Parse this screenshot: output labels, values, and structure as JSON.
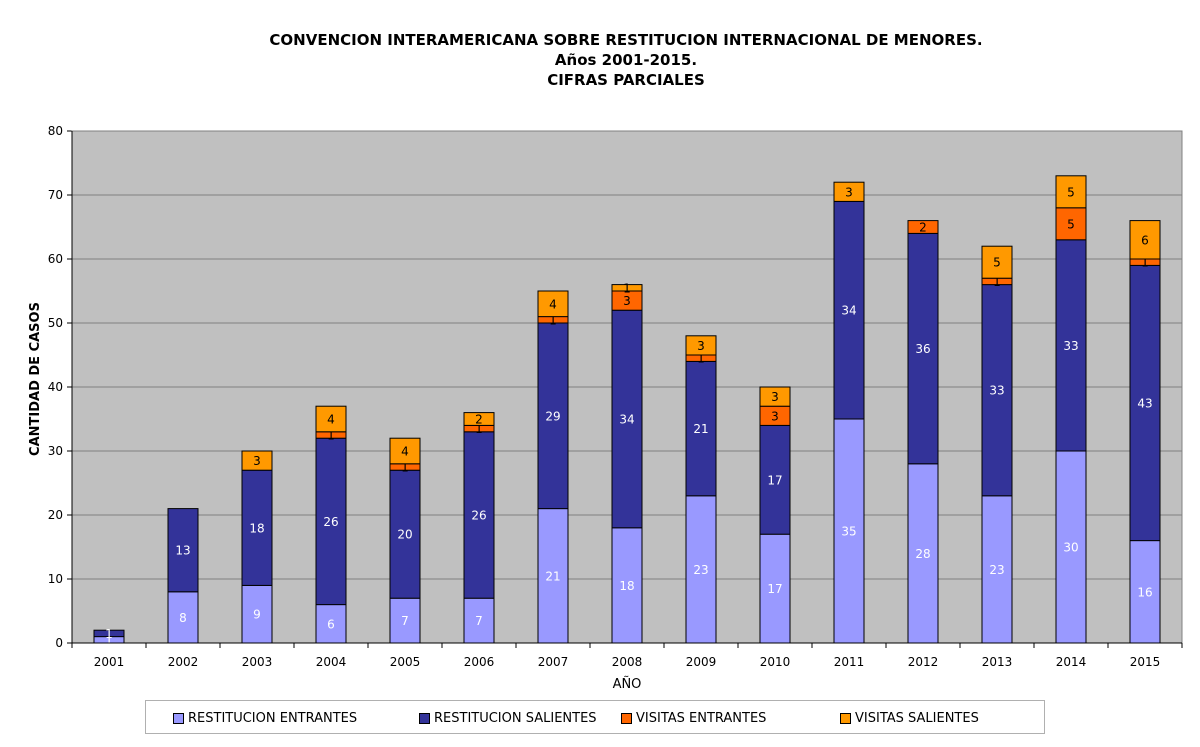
{
  "chart_data": {
    "type": "bar",
    "stacked": true,
    "title": "CONVENCION INTERAMERICANA SOBRE RESTITUCION INTERNACIONAL DE MENORES.",
    "subtitle_lines": [
      "Años 2001-2015.",
      "CIFRAS PARCIALES"
    ],
    "xlabel": "AÑO",
    "ylabel": "CANTIDAD DE CASOS",
    "ylim": [
      0,
      80
    ],
    "yticks": [
      0,
      10,
      20,
      30,
      40,
      50,
      60,
      70,
      80
    ],
    "grid": true,
    "legend_position": "bottom",
    "categories": [
      "2001",
      "2002",
      "2003",
      "2004",
      "2005",
      "2006",
      "2007",
      "2008",
      "2009",
      "2010",
      "2011",
      "2012",
      "2013",
      "2014",
      "2015"
    ],
    "series": [
      {
        "name": "RESTITUCION ENTRANTES",
        "color": "#9999ff",
        "label_color": "#ffffff",
        "values": [
          1,
          8,
          9,
          6,
          7,
          7,
          21,
          18,
          23,
          17,
          35,
          28,
          23,
          30,
          16
        ],
        "labels": [
          "1",
          "8",
          "9",
          "6",
          "7",
          "7",
          "21",
          "18",
          "23",
          "17",
          "35",
          "28",
          "23",
          "30",
          "16"
        ]
      },
      {
        "name": "RESTITUCION SALIENTES",
        "color": "#333399",
        "label_color": "#ffffff",
        "values": [
          1,
          13,
          18,
          26,
          20,
          26,
          29,
          34,
          21,
          17,
          34,
          36,
          33,
          33,
          43
        ],
        "labels": [
          "1",
          "13",
          "18",
          "26",
          "20",
          "26",
          "29",
          "34",
          "21",
          "17",
          "34",
          "36",
          "33",
          "33",
          "43"
        ]
      },
      {
        "name": "VISITAS ENTRANTES",
        "color": "#ff6600",
        "label_color": "#000000",
        "values": [
          0,
          0,
          0,
          1,
          1,
          1,
          1,
          3,
          1,
          3,
          0,
          2,
          1,
          5,
          1
        ],
        "labels": [
          "",
          "",
          "",
          "1",
          "1",
          "1",
          "1",
          "3",
          "1",
          "3",
          "",
          "2",
          "1",
          "5",
          "1"
        ]
      },
      {
        "name": "VISITAS SALIENTES",
        "color": "#ff9900",
        "label_color": "#000000",
        "values": [
          0,
          0,
          3,
          4,
          4,
          2,
          4,
          1,
          3,
          3,
          3,
          0,
          5,
          5,
          6
        ],
        "labels": [
          "",
          "",
          "3",
          "4",
          "4",
          "2",
          "4",
          "1",
          "3",
          "3",
          "3",
          "",
          "5",
          "5",
          "6"
        ]
      }
    ],
    "colors": {
      "plot_background": "#c0c0c0",
      "grid": "#808080"
    }
  }
}
